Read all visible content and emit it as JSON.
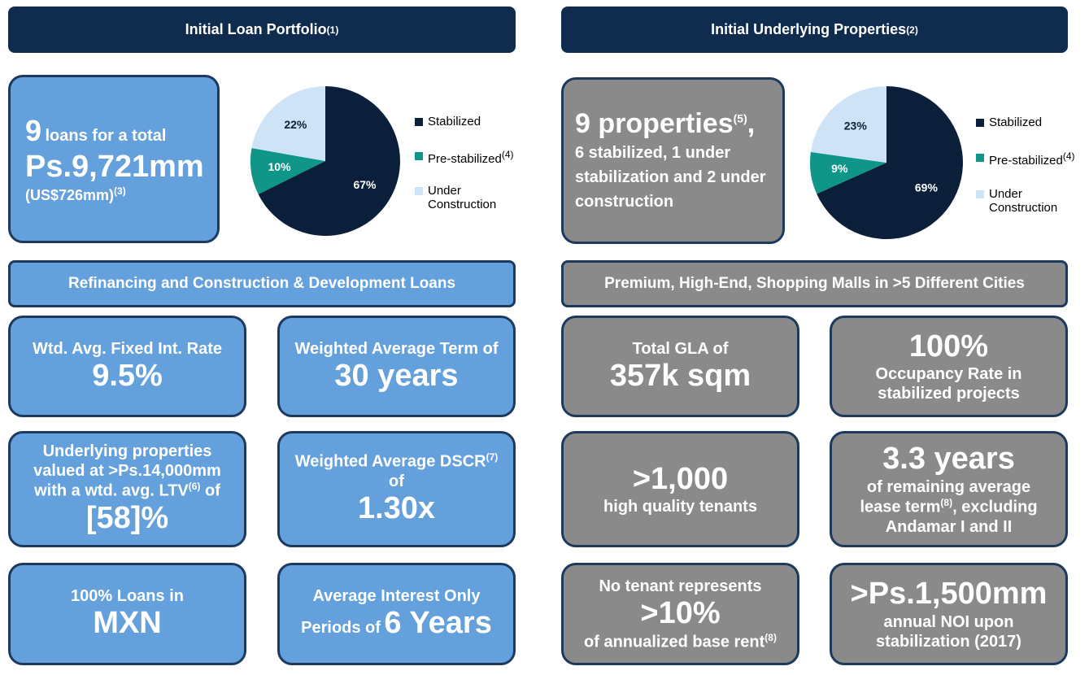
{
  "chart_data": [
    {
      "type": "pie",
      "categories": [
        "Stabilized",
        "Pre-stabilized",
        "Under Construction"
      ],
      "category_notes": [
        null,
        "(4)",
        null
      ],
      "values": [
        67,
        10,
        22
      ],
      "value_labels": [
        "67%",
        "10%",
        "22%"
      ],
      "colors": [
        "#0b1f3a",
        "#0f9688",
        "#cfe3f7"
      ]
    },
    {
      "type": "pie",
      "categories": [
        "Stabilized",
        "Pre-stabilized",
        "Under Construction"
      ],
      "category_notes": [
        null,
        "(4)",
        null
      ],
      "values": [
        69,
        9,
        23
      ],
      "value_labels": [
        "69%",
        "9%",
        "23%"
      ],
      "colors": [
        "#0b1f3a",
        "#0f9688",
        "#cfe3f7"
      ]
    }
  ],
  "left": {
    "header": {
      "text": "Initial Loan Portfolio",
      "note": "(1)"
    },
    "summary": {
      "count": "9",
      "text": "loans for a total",
      "amount": "Ps.9,721mm",
      "usd": "(US$726mm)",
      "usd_note": "(3)"
    },
    "banner": "Refinancing and Construction & Development Loans",
    "cards": [
      {
        "label": "Wtd. Avg. Fixed Int. Rate",
        "value": "9.5%"
      },
      {
        "label": "Weighted Average Term of",
        "value": "30 years"
      },
      {
        "line1": "Underlying properties",
        "line2": "valued at >Ps.14,000mm",
        "line3": "with a wtd. avg. LTV",
        "line3_note": "(6)",
        "line3_end": "of",
        "value": "[58]%"
      },
      {
        "line1": "Weighted Average DSCR",
        "line1_note": "(7)",
        "line2": "of",
        "value": "1.30x"
      },
      {
        "label": "100% Loans in",
        "value": "MXN"
      },
      {
        "label": "Average Interest Only",
        "prefix": "Periods of",
        "value": "6 Years"
      }
    ]
  },
  "right": {
    "header": {
      "text": "Initial Underlying Properties",
      "note": "(2)"
    },
    "summary": {
      "title": "9 properties",
      "title_note": "(5)",
      "title_end": ",",
      "text": "6 stabilized, 1 under stabilization and 2 under construction"
    },
    "banner": "Premium, High-End, Shopping Malls in >5 Different Cities",
    "cards": [
      {
        "label": "Total GLA of",
        "value": "357k sqm"
      },
      {
        "value": "100%",
        "line1": "Occupancy Rate in",
        "line2": "stabilized projects"
      },
      {
        "value": ">1,000",
        "label": "high quality tenants"
      },
      {
        "value": "3.3 years",
        "line1": "of remaining average",
        "line2": "lease term",
        "line2_note": "(8)",
        "line2_end": ", excluding",
        "line3": "Andamar I and II"
      },
      {
        "line1": "No tenant represents",
        "value": ">10%",
        "line2": "of annualized base rent",
        "line2_note": "(8)"
      },
      {
        "value": ">Ps.1,500mm",
        "line1": "annual NOI upon",
        "line2": "stabilization (2017)"
      }
    ]
  }
}
